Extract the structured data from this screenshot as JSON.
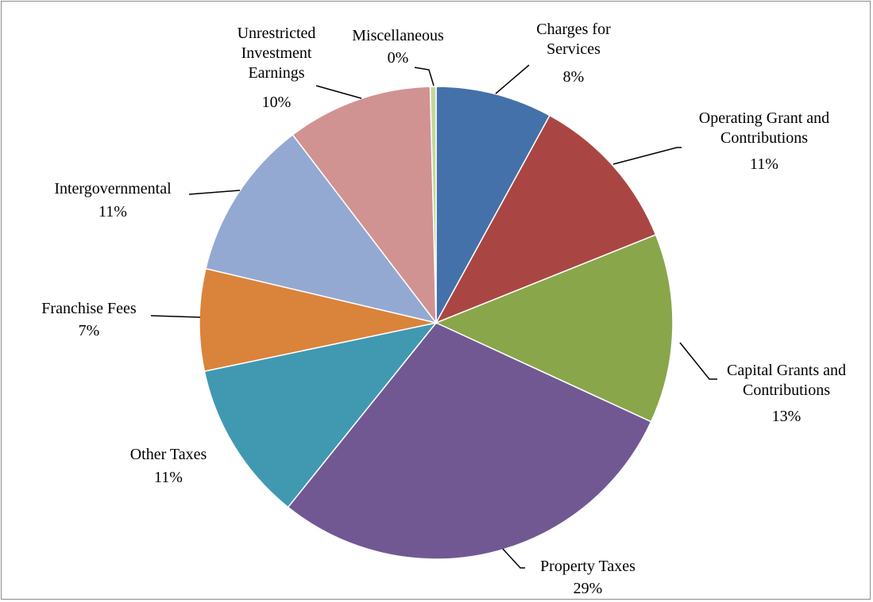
{
  "chart_data": {
    "type": "pie",
    "categories": [
      "Charges for Services",
      "Operating Grant and Contributions",
      "Capital Grants and Contributions",
      "Property Taxes",
      "Other Taxes",
      "Franchise Fees",
      "Intergovernmental",
      "Unrestricted Investment Earnings",
      "Miscellaneous"
    ],
    "values": [
      8,
      11,
      13,
      29,
      11,
      7,
      11,
      10,
      0.4
    ],
    "value_labels": [
      "8%",
      "11%",
      "13%",
      "29%",
      "11%",
      "7%",
      "11%",
      "10%",
      "0%"
    ],
    "colors": [
      "#4471a9",
      "#a94644",
      "#89a64b",
      "#725893",
      "#4199b1",
      "#da833b",
      "#94a9d1",
      "#d19292",
      "#c4d79c"
    ]
  }
}
